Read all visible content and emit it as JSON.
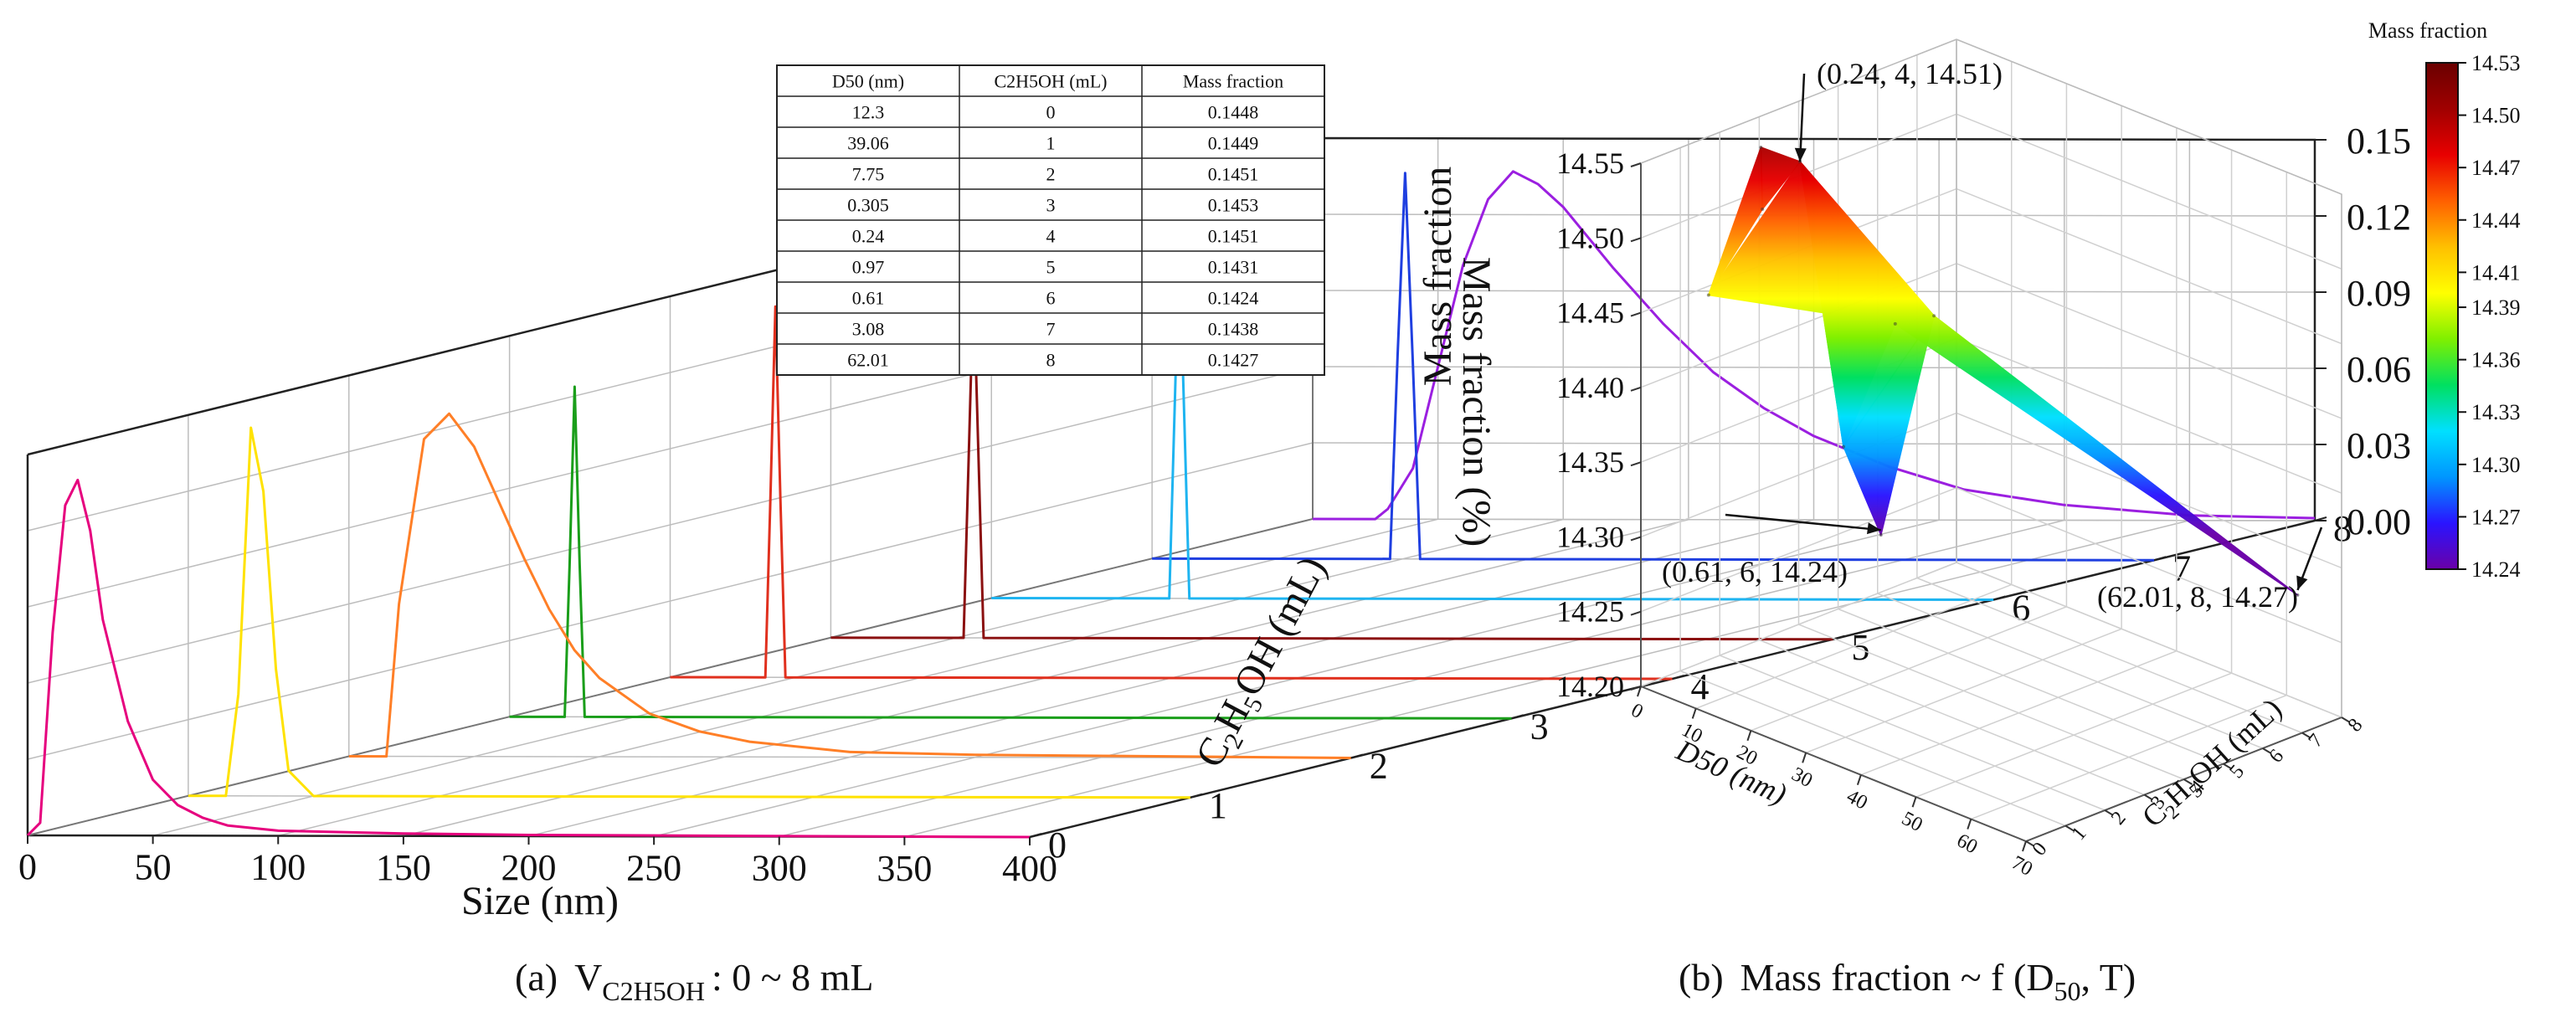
{
  "chart_data": [
    {
      "type": "line",
      "panel": "(a)",
      "projection": "3d waterfall",
      "caption_prefix": "(a)",
      "caption_main": "V",
      "caption_sub": "C2H5OH",
      "caption_suffix": ": 0 ~ 8 mL",
      "xlabel": "Size (nm)",
      "ylabel_text": "C",
      "ylabel_sub1": "2",
      "ylabel_mid": "H",
      "ylabel_sub2": "5",
      "ylabel_end": "OH (mL)",
      "zlabel": "Mass fraction",
      "x_ticks": [
        "0",
        "50",
        "100",
        "150",
        "200",
        "250",
        "300",
        "350",
        "400"
      ],
      "y_ticks": [
        "0",
        "1",
        "2",
        "3",
        "4",
        "5",
        "6",
        "7",
        "8"
      ],
      "z_ticks": [
        "0.00",
        "0.03",
        "0.06",
        "0.09",
        "0.12",
        "0.15"
      ],
      "xlim": [
        0,
        400
      ],
      "ylim": [
        0,
        8
      ],
      "zlim": [
        0,
        0.15
      ],
      "series": [
        {
          "name": "0 mL",
          "color": "#e6007e",
          "points": [
            [
              0,
              0
            ],
            [
              5,
              0.005
            ],
            [
              10,
              0.08
            ],
            [
              15,
              0.13
            ],
            [
              20,
              0.14
            ],
            [
              25,
              0.12
            ],
            [
              30,
              0.085
            ],
            [
              40,
              0.045
            ],
            [
              50,
              0.022
            ],
            [
              60,
              0.012
            ],
            [
              70,
              0.007
            ],
            [
              80,
              0.004
            ],
            [
              100,
              0.002
            ],
            [
              150,
              0.001
            ],
            [
              200,
              0.0005
            ],
            [
              400,
              0
            ]
          ]
        },
        {
          "name": "1 mL",
          "color": "#ffe200",
          "points": [
            [
              0,
              0
            ],
            [
              15,
              0
            ],
            [
              20,
              0.04
            ],
            [
              25,
              0.145
            ],
            [
              30,
              0.12
            ],
            [
              35,
              0.05
            ],
            [
              40,
              0.01
            ],
            [
              50,
              0
            ],
            [
              400,
              0
            ]
          ]
        },
        {
          "name": "2 mL",
          "color": "#ff7f27",
          "points": [
            [
              0,
              0
            ],
            [
              15,
              0
            ],
            [
              20,
              0.06
            ],
            [
              30,
              0.125
            ],
            [
              40,
              0.135
            ],
            [
              50,
              0.122
            ],
            [
              60,
              0.1
            ],
            [
              70,
              0.078
            ],
            [
              80,
              0.058
            ],
            [
              90,
              0.042
            ],
            [
              100,
              0.031
            ],
            [
              120,
              0.017
            ],
            [
              140,
              0.01
            ],
            [
              160,
              0.006
            ],
            [
              200,
              0.002
            ],
            [
              250,
              0.001
            ],
            [
              400,
              0
            ]
          ]
        },
        {
          "name": "3 mL",
          "color": "#1a9e1a",
          "points": [
            [
              0,
              0
            ],
            [
              22,
              0
            ],
            [
              24,
              0.06
            ],
            [
              26,
              0.13
            ],
            [
              28,
              0.06
            ],
            [
              30,
              0
            ],
            [
              400,
              0
            ]
          ]
        },
        {
          "name": "4 mL",
          "color": "#e0301e",
          "points": [
            [
              0,
              0
            ],
            [
              38,
              0
            ],
            [
              40,
              0.07
            ],
            [
              42,
              0.146
            ],
            [
              44,
              0.07
            ],
            [
              46,
              0
            ],
            [
              400,
              0
            ]
          ]
        },
        {
          "name": "5 mL",
          "color": "#8b1010",
          "points": [
            [
              0,
              0
            ],
            [
              53,
              0
            ],
            [
              55,
              0.07
            ],
            [
              57,
              0.14
            ],
            [
              59,
              0.07
            ],
            [
              61,
              0
            ],
            [
              400,
              0
            ]
          ]
        },
        {
          "name": "6 mL",
          "color": "#1eb4f0",
          "points": [
            [
              0,
              0
            ],
            [
              71,
              0
            ],
            [
              73,
              0.07
            ],
            [
              75,
              0.14
            ],
            [
              77,
              0.07
            ],
            [
              79,
              0
            ],
            [
              400,
              0
            ]
          ]
        },
        {
          "name": "7 mL",
          "color": "#1f3fe0",
          "points": [
            [
              0,
              0
            ],
            [
              95,
              0
            ],
            [
              98,
              0.08
            ],
            [
              101,
              0.152
            ],
            [
              104,
              0.08
            ],
            [
              107,
              0
            ],
            [
              400,
              0
            ]
          ]
        },
        {
          "name": "8 mL",
          "color": "#9b1fe0",
          "points": [
            [
              0,
              0
            ],
            [
              25,
              0
            ],
            [
              30,
              0.004
            ],
            [
              40,
              0.02
            ],
            [
              50,
              0.06
            ],
            [
              60,
              0.1
            ],
            [
              70,
              0.126
            ],
            [
              80,
              0.137
            ],
            [
              90,
              0.132
            ],
            [
              100,
              0.123
            ],
            [
              110,
              0.111
            ],
            [
              120,
              0.099
            ],
            [
              140,
              0.077
            ],
            [
              160,
              0.058
            ],
            [
              180,
              0.044
            ],
            [
              200,
              0.033
            ],
            [
              230,
              0.021
            ],
            [
              260,
              0.012
            ],
            [
              300,
              0.006
            ],
            [
              350,
              0.002
            ],
            [
              400,
              0.001
            ]
          ]
        }
      ],
      "table": {
        "headers": [
          "D50 (nm)",
          "C2H5OH (mL)",
          "Mass fraction"
        ],
        "rows": [
          [
            "12.3",
            "0",
            "0.1448"
          ],
          [
            "39.06",
            "1",
            "0.1449"
          ],
          [
            "7.75",
            "2",
            "0.1451"
          ],
          [
            "0.305",
            "3",
            "0.1453"
          ],
          [
            "0.24",
            "4",
            "0.1451"
          ],
          [
            "0.97",
            "5",
            "0.1431"
          ],
          [
            "0.61",
            "6",
            "0.1424"
          ],
          [
            "3.08",
            "7",
            "0.1438"
          ],
          [
            "62.01",
            "8",
            "0.1427"
          ]
        ]
      }
    },
    {
      "type": "surface",
      "panel": "(b)",
      "projection": "3d surface",
      "caption_prefix": "(b)",
      "caption_main": "Mass fraction ~ f (D",
      "caption_sub": "50",
      "caption_suffix": ", T)",
      "xlabel": "D50 (nm)",
      "ylabel_text": "C",
      "ylabel_sub1": "2",
      "ylabel_mid": "H",
      "ylabel_sub2": "5",
      "ylabel_end": "OH (mL)",
      "zlabel": "Mass fraction (%)",
      "x_ticks": [
        "0",
        "10",
        "20",
        "30",
        "40",
        "50",
        "60",
        "70"
      ],
      "y_ticks": [
        "0",
        "1",
        "2",
        "3",
        "4",
        "5",
        "6",
        "7",
        "8"
      ],
      "z_ticks": [
        "14.20",
        "14.25",
        "14.30",
        "14.35",
        "14.40",
        "14.45",
        "14.50",
        "14.55"
      ],
      "xlim": [
        0,
        70
      ],
      "ylim": [
        0,
        8
      ],
      "zlim": [
        14.2,
        14.55
      ],
      "points": [
        {
          "d50": 12.3,
          "ml": 0,
          "mf": 14.48
        },
        {
          "d50": 39.06,
          "ml": 1,
          "mf": 14.49
        },
        {
          "d50": 7.75,
          "ml": 2,
          "mf": 14.51
        },
        {
          "d50": 0.305,
          "ml": 3,
          "mf": 14.53
        },
        {
          "d50": 0.24,
          "ml": 4,
          "mf": 14.51
        },
        {
          "d50": 0.97,
          "ml": 5,
          "mf": 14.31
        },
        {
          "d50": 0.61,
          "ml": 6,
          "mf": 14.24
        },
        {
          "d50": 3.08,
          "ml": 7,
          "mf": 14.38
        },
        {
          "d50": 62.01,
          "ml": 8,
          "mf": 14.27
        }
      ],
      "annotations": [
        {
          "text": "(0.24, 4, 14.51)",
          "d50": 0.24,
          "ml": 4,
          "mf": 14.51
        },
        {
          "text": "(0.61, 6, 14.24)",
          "d50": 0.61,
          "ml": 6,
          "mf": 14.24
        },
        {
          "text": "(62.01, 8, 14.27)",
          "d50": 62.01,
          "ml": 8,
          "mf": 14.27
        }
      ],
      "colorbar": {
        "title": "Mass fraction",
        "ticks": [
          "14.53",
          "14.50",
          "14.47",
          "14.44",
          "14.41",
          "14.39",
          "14.36",
          "14.33",
          "14.30",
          "14.27",
          "14.24"
        ],
        "range": [
          14.24,
          14.53
        ],
        "colors": [
          "#6a00a8",
          "#2a14ff",
          "#0096ff",
          "#00e0ff",
          "#00e060",
          "#80f000",
          "#ffff00",
          "#ffc000",
          "#ff6000",
          "#e80000",
          "#a00000",
          "#6a0000"
        ]
      }
    }
  ]
}
